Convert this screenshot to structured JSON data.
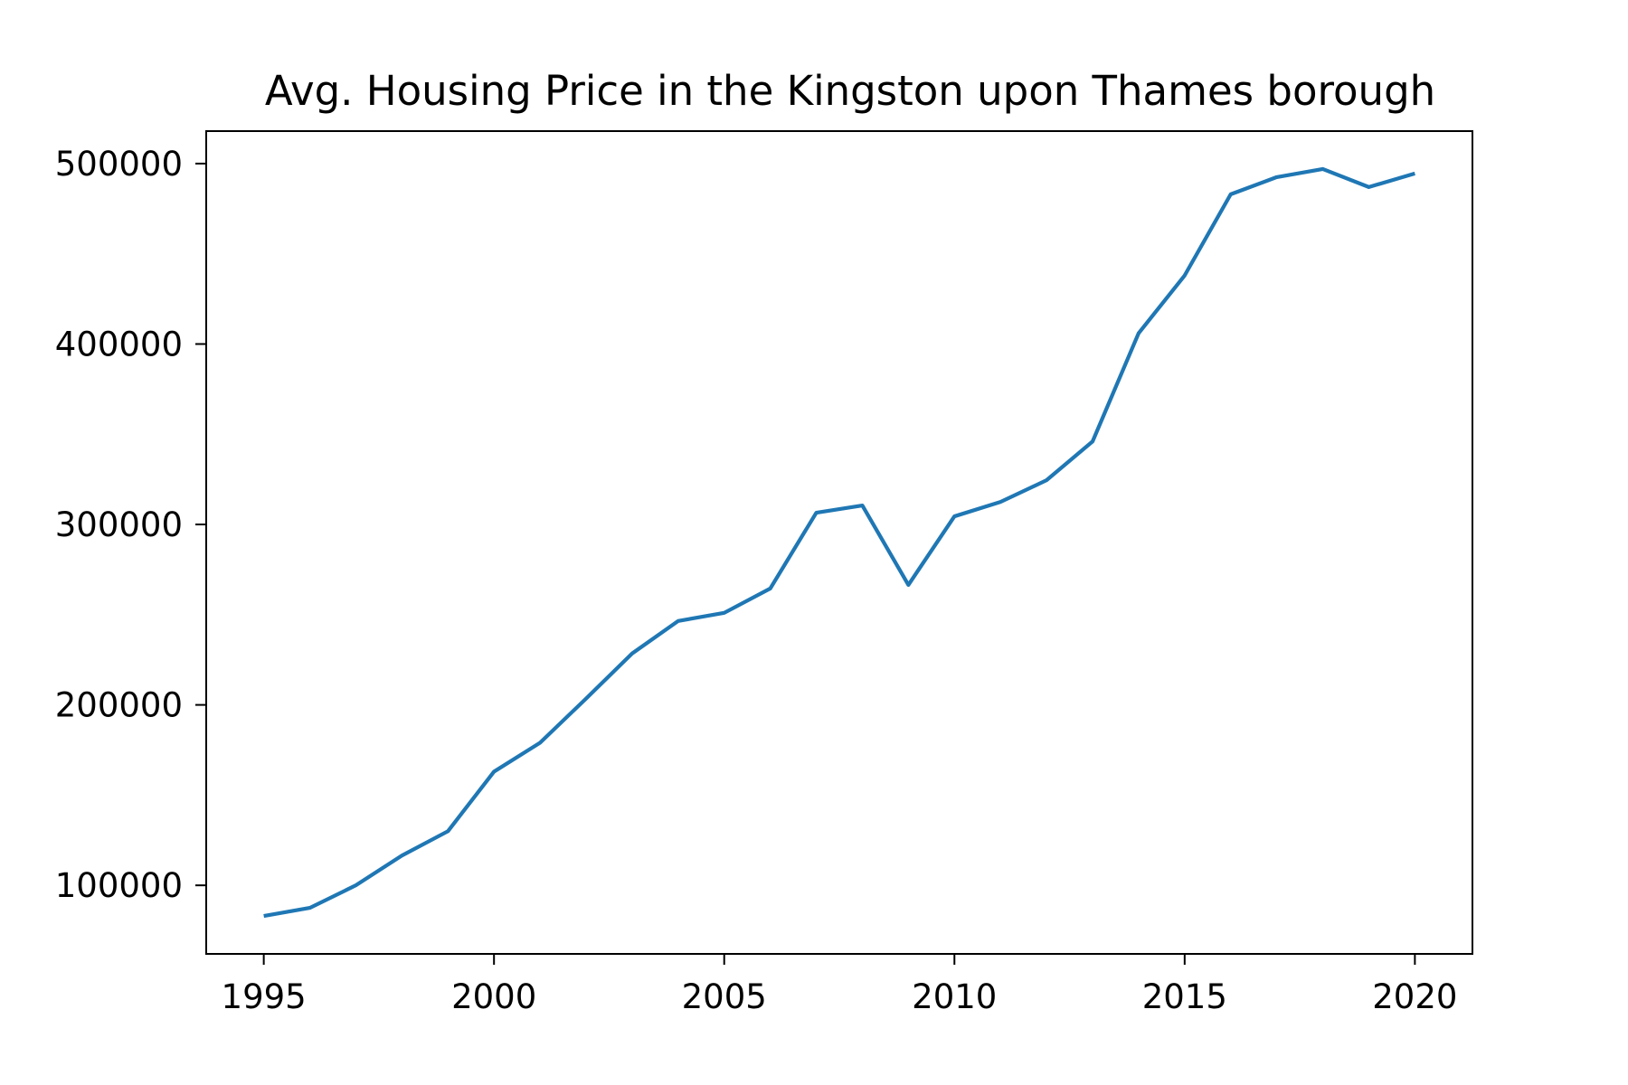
{
  "chart_data": {
    "type": "line",
    "title": "Avg. Housing Price in the Kingston upon Thames borough",
    "xlabel": "",
    "ylabel": "",
    "xlim": [
      1993.75,
      2021.25
    ],
    "ylim": [
      62000,
      518000
    ],
    "x_ticks": [
      1995,
      2000,
      2005,
      2010,
      2015,
      2020
    ],
    "y_ticks": [
      100000,
      200000,
      300000,
      400000,
      500000
    ],
    "x_tick_labels": [
      "1995",
      "2000",
      "2005",
      "2010",
      "2015",
      "2020"
    ],
    "y_tick_labels": [
      "100000",
      "200000",
      "300000",
      "400000",
      "500000"
    ],
    "grid": false,
    "series": [
      {
        "color": "#1f77b4",
        "x": [
          1995,
          1996,
          1997,
          1998,
          1999,
          2000,
          2001,
          2002,
          2003,
          2004,
          2005,
          2006,
          2007,
          2008,
          2009,
          2010,
          2011,
          2012,
          2013,
          2014,
          2015,
          2016,
          2017,
          2018,
          2019,
          2020
        ],
        "y": [
          83000,
          87500,
          100000,
          116500,
          130000,
          163000,
          179000,
          203500,
          228500,
          246500,
          251000,
          264500,
          306500,
          310500,
          266500,
          304500,
          312500,
          324500,
          346000,
          406000,
          438000,
          483000,
          492500,
          497000,
          487000,
          494500
        ]
      }
    ]
  }
}
